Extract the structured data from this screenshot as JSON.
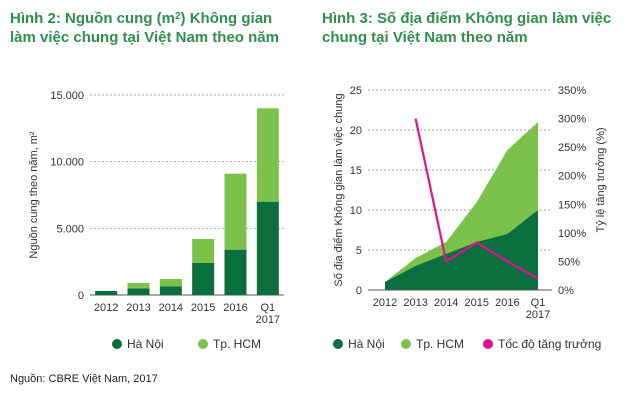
{
  "colors": {
    "hanoi": "#0b6e3f",
    "hcm": "#7cc24a",
    "growth": "#e0138c",
    "title": "#2f8f4e",
    "axis": "#555555",
    "grid": "#888888"
  },
  "fig2": {
    "title_pre": "Hình 2: Nguồn cung (m",
    "title_sup": "2",
    "title_post": ") Không gian làm việc chung tại Việt Nam theo năm",
    "ylabel": "Nguồn cung  theo năm, m²",
    "legend": [
      "Hà Nội",
      "Tp. HCM"
    ]
  },
  "fig3": {
    "title": "Hình 3: Số địa điểm Không gian làm việc chung tại Việt Nam theo năm",
    "ylabel_left": "Số địa điểm Không gian làm việc chung",
    "ylabel_right": "Tỷ lệ tăng trưởng (%)",
    "legend": [
      "Hà Nội",
      "Tp. HCM",
      "Tốc độ tăng trưởng"
    ]
  },
  "source": "Nguồn: CBRE Việt Nam, 2017",
  "chart_data": [
    {
      "type": "bar",
      "stacked": true,
      "categories": [
        "2012",
        "2013",
        "2014",
        "2015",
        "2016",
        "Q1 2017"
      ],
      "series": [
        {
          "name": "Hà Nội",
          "values": [
            300,
            500,
            650,
            2400,
            3400,
            7000
          ]
        },
        {
          "name": "Tp. HCM",
          "values": [
            0,
            400,
            550,
            1800,
            5700,
            7000
          ]
        }
      ],
      "ylabel": "Nguồn cung  theo năm, m²",
      "ylim": [
        0,
        15000
      ],
      "yticks": [
        "0",
        "5.000",
        "10.000",
        "15.000"
      ],
      "grid": "horizontal dashed",
      "legend": "bottom"
    },
    {
      "type": "area",
      "stacked": true,
      "categories": [
        "2012",
        "2013",
        "2014",
        "2015",
        "2016",
        "Q1 2017"
      ],
      "series": [
        {
          "name": "Hà Nội",
          "values": [
            1,
            3,
            4.5,
            6,
            7,
            10
          ]
        },
        {
          "name": "Tp. HCM",
          "values": [
            0,
            1,
            1.5,
            5,
            10.5,
            11
          ]
        }
      ],
      "secondary_series": {
        "name": "Tốc độ tăng trưởng",
        "type": "line",
        "x": [
          "2013",
          "2014",
          "2015",
          "2016",
          "Q1 2017"
        ],
        "values": [
          300,
          50,
          83,
          50,
          20
        ]
      },
      "ylabel": "Số địa điểm Không gian làm việc chung",
      "ylabel_right": "Tỷ lệ tăng trưởng (%)",
      "ylim": [
        0,
        25
      ],
      "ylim_right": [
        0,
        350
      ],
      "yticks": [
        "0",
        "5",
        "10",
        "15",
        "20",
        "25"
      ],
      "yticks_right": [
        "0%",
        "50%",
        "100%",
        "150%",
        "200%",
        "250%",
        "300%",
        "350%"
      ],
      "grid": "horizontal dashed",
      "legend": "bottom"
    }
  ]
}
